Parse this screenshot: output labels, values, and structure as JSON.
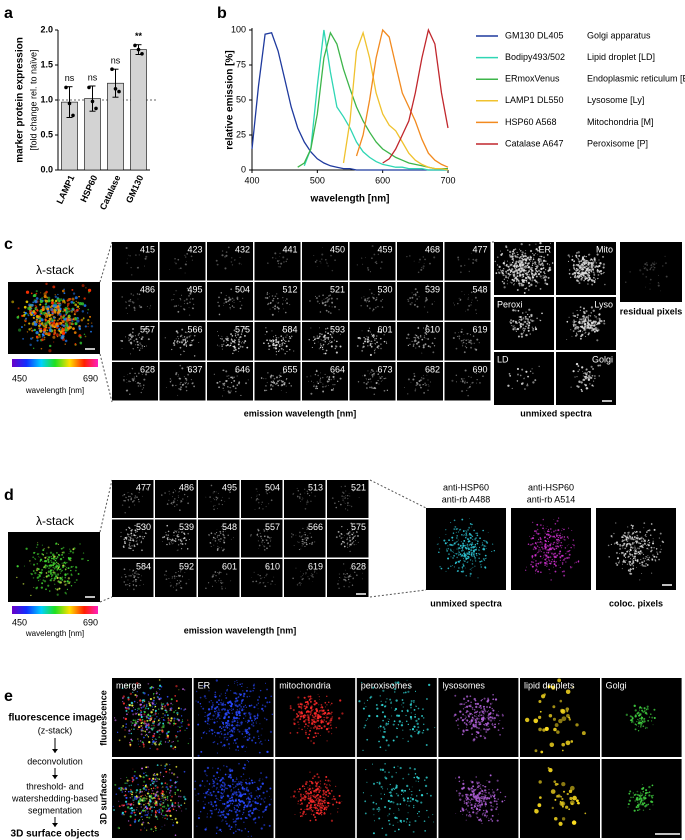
{
  "chart_data": [
    {
      "type": "bar",
      "panel": "a",
      "ylabel": "marker protein expression",
      "ylabel_note": "[fold change rel. to naïve]",
      "categories": [
        "LAMP1",
        "HSP60",
        "Catalase",
        "GM130"
      ],
      "values": [
        0.97,
        1.02,
        1.24,
        1.72
      ],
      "errors": [
        0.22,
        0.18,
        0.2,
        0.07
      ],
      "points": [
        [
          1.18,
          0.95,
          0.78
        ],
        [
          1.18,
          0.98,
          0.88
        ],
        [
          1.44,
          1.16,
          1.12
        ],
        [
          1.78,
          1.72,
          1.66
        ]
      ],
      "significance": [
        "ns",
        "ns",
        "ns",
        "**"
      ],
      "color": "#d3d3d3",
      "reference_line": 1,
      "ylim": [
        0,
        2
      ],
      "yticks": [
        {
          "value": 0,
          "label": "0.0"
        },
        0.5,
        {
          "value": 1,
          "label": "1.0"
        },
        1.5,
        {
          "value": 2,
          "label": "2.0"
        }
      ]
    },
    {
      "type": "line",
      "panel": "b",
      "xlabel": "wavelength [nm]",
      "ylabel": "relative emission [%]",
      "x": [
        400,
        410,
        420,
        430,
        440,
        450,
        460,
        470,
        480,
        490,
        500,
        510,
        520,
        530,
        540,
        550,
        560,
        570,
        580,
        590,
        600,
        610,
        620,
        630,
        640,
        650,
        660,
        670,
        680,
        690,
        700
      ],
      "series": [
        {
          "name": "GM130 DL405",
          "description": "Golgi apparatus",
          "color": "#1f3a9e",
          "values": [
            15,
            60,
            97,
            98,
            85,
            65,
            45,
            30,
            20,
            13,
            8,
            5,
            3,
            2,
            1,
            1,
            0,
            0,
            0,
            0,
            0,
            0,
            0,
            0,
            0,
            0,
            0,
            0,
            0,
            0,
            0
          ]
        },
        {
          "name": "Bodipy493/502",
          "description": "Lipid droplet [LD]",
          "color": "#2fd6b4",
          "values": [
            null,
            null,
            null,
            null,
            null,
            null,
            null,
            null,
            3,
            15,
            60,
            100,
            70,
            45,
            38,
            30,
            20,
            13,
            9,
            6,
            4,
            3,
            2,
            2,
            1,
            1,
            1,
            0,
            0,
            0,
            0
          ]
        },
        {
          "name": "ERmoxVenus",
          "description": "Endoplasmic reticulum [ER]",
          "color": "#3db54a",
          "values": [
            null,
            null,
            null,
            null,
            null,
            null,
            null,
            2,
            5,
            15,
            40,
            80,
            98,
            90,
            72,
            58,
            45,
            35,
            27,
            20,
            15,
            12,
            9,
            7,
            5,
            4,
            3,
            2,
            1,
            1,
            1
          ]
        },
        {
          "name": "LAMP1 DL550",
          "description": "Lysosome [Ly]",
          "color": "#f0c22e",
          "values": [
            null,
            null,
            null,
            null,
            null,
            null,
            null,
            null,
            null,
            null,
            null,
            null,
            null,
            null,
            5,
            35,
            85,
            98,
            80,
            55,
            40,
            32,
            28,
            20,
            12,
            7,
            4,
            2,
            1,
            1,
            0
          ]
        },
        {
          "name": "HSP60 A568",
          "description": "Mitochondria [M]",
          "color": "#f28a1f",
          "values": [
            null,
            null,
            null,
            null,
            null,
            null,
            null,
            null,
            null,
            null,
            null,
            null,
            null,
            null,
            null,
            null,
            10,
            25,
            50,
            80,
            100,
            95,
            75,
            55,
            45,
            35,
            22,
            12,
            7,
            4,
            2
          ]
        },
        {
          "name": "Catalase A647",
          "description": "Peroxisome [P]",
          "color": "#c1272d",
          "values": [
            null,
            null,
            null,
            null,
            null,
            null,
            null,
            null,
            null,
            null,
            null,
            null,
            null,
            null,
            null,
            null,
            null,
            null,
            null,
            null,
            5,
            8,
            15,
            25,
            35,
            55,
            80,
            100,
            90,
            55,
            30
          ]
        }
      ],
      "xlim": [
        400,
        700
      ],
      "ylim": [
        0,
        100
      ],
      "xticks": [
        400,
        500,
        600,
        700
      ],
      "yticks": [
        0,
        25,
        50,
        75,
        100
      ]
    }
  ],
  "panel_c": {
    "label": "c",
    "stack_title": "λ-stack",
    "colorbar": [
      450,
      690
    ],
    "colorbar_label": "wavelength [nm]",
    "wavelengths": [
      415,
      423,
      432,
      441,
      450,
      459,
      468,
      477,
      486,
      495,
      504,
      512,
      521,
      530,
      539,
      548,
      557,
      566,
      575,
      584,
      593,
      601,
      610,
      619,
      628,
      637,
      646,
      655,
      664,
      673,
      682,
      690
    ],
    "grid_label": "emission wavelength [nm]",
    "unmixed": [
      "ER",
      "Mito",
      "Peroxi",
      "Lyso",
      "LD",
      "Golgi"
    ],
    "residual_label": "residual pixels",
    "unmixed_label": "unmixed spectra"
  },
  "panel_d": {
    "label": "d",
    "stack_title": "λ-stack",
    "colorbar": [
      450,
      690
    ],
    "colorbar_label": "wavelength [nm]",
    "wavelengths": [
      477,
      486,
      495,
      504,
      513,
      521,
      530,
      539,
      548,
      557,
      566,
      575,
      584,
      592,
      601,
      610,
      619,
      628
    ],
    "grid_label": "emission wavelength [nm]",
    "channels": [
      [
        "anti-HSP60",
        "anti-rb A488"
      ],
      [
        "anti-HSP60",
        "anti-rb A514"
      ]
    ],
    "unmixed_label": "unmixed spectra",
    "coloc_label": "coloc. pixels"
  },
  "panel_e": {
    "label": "e",
    "workflow": [
      "fluorescence image",
      "(z-stack)",
      "deconvolution",
      "threshold- and",
      "watershedding-based",
      "segmentation",
      "3D surface objects"
    ],
    "rows": [
      "fluorescence",
      "3D surfaces"
    ],
    "columns": [
      "merge",
      "ER",
      "mitochondria",
      "peroxisomes",
      "lysosomes",
      "lipid droplets",
      "Golgi"
    ]
  }
}
